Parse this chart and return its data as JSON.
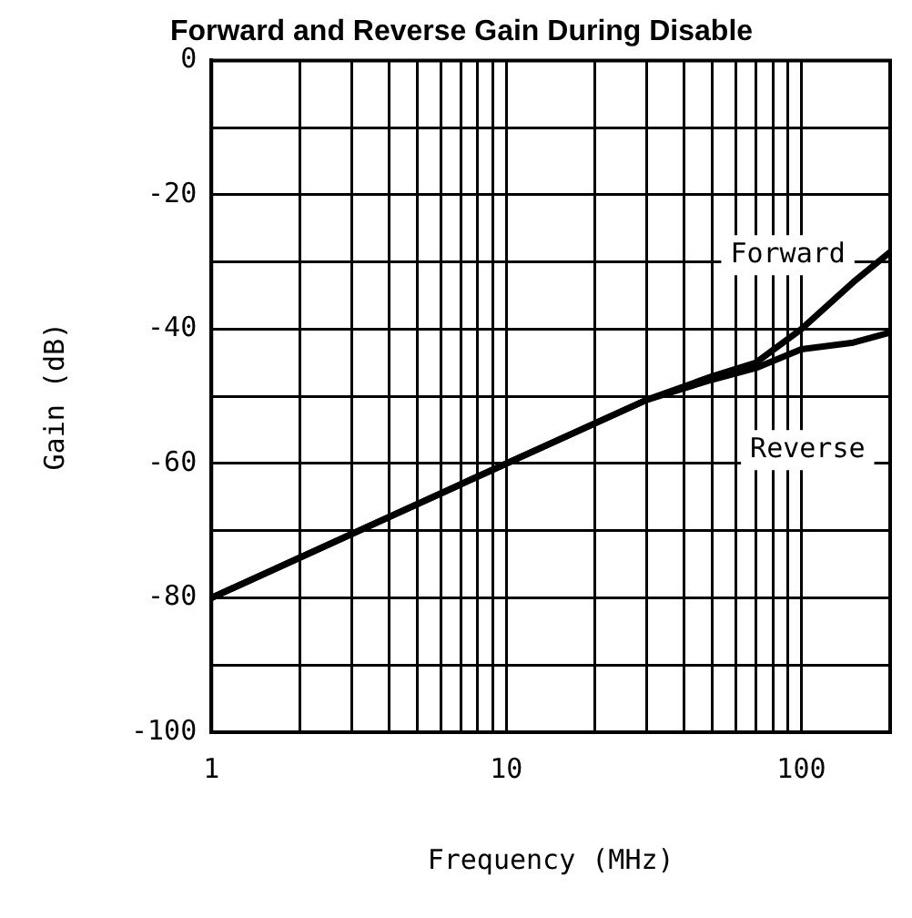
{
  "chart_data": {
    "type": "line",
    "title": "Forward and Reverse Gain During Disable",
    "xlabel": "Frequency (MHz)",
    "ylabel": "Gain (dB)",
    "log": "x",
    "xlim": [
      1,
      200
    ],
    "ylim": [
      -100,
      0
    ],
    "xticks": [
      1,
      {
        "value": 2,
        "label": null
      },
      {
        "value": 3,
        "label": null
      },
      {
        "value": 4,
        "label": null
      },
      {
        "value": 5,
        "label": null
      },
      {
        "value": 6,
        "label": null
      },
      {
        "value": 7,
        "label": null
      },
      {
        "value": 8,
        "label": null
      },
      {
        "value": 9,
        "label": null
      },
      10,
      {
        "value": 20,
        "label": null
      },
      {
        "value": 30,
        "label": null
      },
      {
        "value": 40,
        "label": null
      },
      {
        "value": 50,
        "label": null
      },
      {
        "value": 60,
        "label": null
      },
      {
        "value": 70,
        "label": null
      },
      {
        "value": 80,
        "label": null
      },
      {
        "value": 90,
        "label": null
      },
      100
    ],
    "yticks": [
      -100,
      {
        "value": -90,
        "label": null
      },
      -80,
      {
        "value": -70,
        "label": null
      },
      -60,
      {
        "value": -50,
        "label": null
      },
      -40,
      {
        "value": -30,
        "label": null
      },
      -20,
      {
        "value": -10,
        "label": null
      },
      0
    ],
    "x": [
      1,
      10,
      30,
      50,
      70,
      100,
      150,
      200
    ],
    "series": [
      {
        "name": "Forward",
        "color": "#000000",
        "values": [
          -80,
          -60,
          -50.5,
          -47,
          -45,
          -40,
          -33,
          -28.5
        ]
      },
      {
        "name": "Reverse",
        "color": "#000000",
        "values": [
          -80,
          -60,
          -50.5,
          -47.5,
          -45.8,
          -43,
          -42,
          -40.5
        ]
      }
    ],
    "grid": true,
    "legend": false,
    "marker": "none",
    "line_style": "solid"
  }
}
